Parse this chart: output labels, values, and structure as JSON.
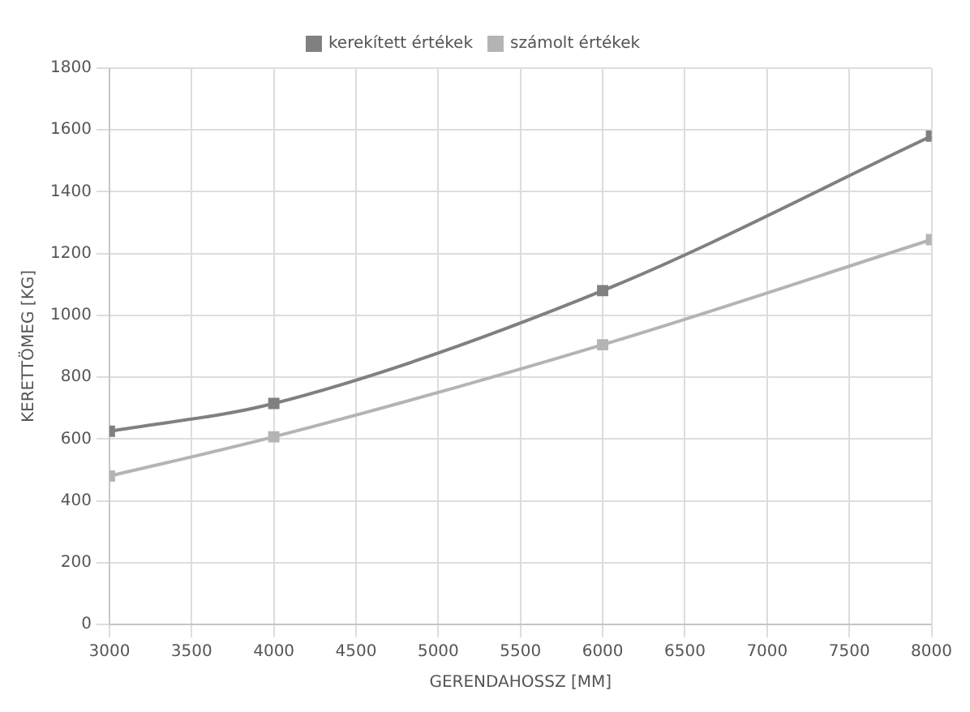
{
  "chart_data": {
    "type": "line",
    "xlabel": "GERENDAHOSSZ [MM]",
    "ylabel": "KERETTÖMEG [KG]",
    "x": [
      3000,
      4000,
      6000,
      8000
    ],
    "series": [
      {
        "name": "kerekített értékek",
        "color": "#808080",
        "values": [
          625,
          715,
          1080,
          1580
        ]
      },
      {
        "name": "számolt értékek",
        "color": "#b4b4b4",
        "values": [
          480,
          607,
          905,
          1245
        ]
      }
    ],
    "xlim": [
      3000,
      8000
    ],
    "xticks": [
      3000,
      3500,
      4000,
      4500,
      5000,
      5500,
      6000,
      6500,
      7000,
      7500,
      8000
    ],
    "ylim": [
      0,
      1800
    ],
    "yticks": [
      0,
      200,
      400,
      600,
      800,
      1000,
      1200,
      1400,
      1600,
      1800
    ],
    "grid": true,
    "legend": "top",
    "marker": "square",
    "line_style": "solid"
  }
}
